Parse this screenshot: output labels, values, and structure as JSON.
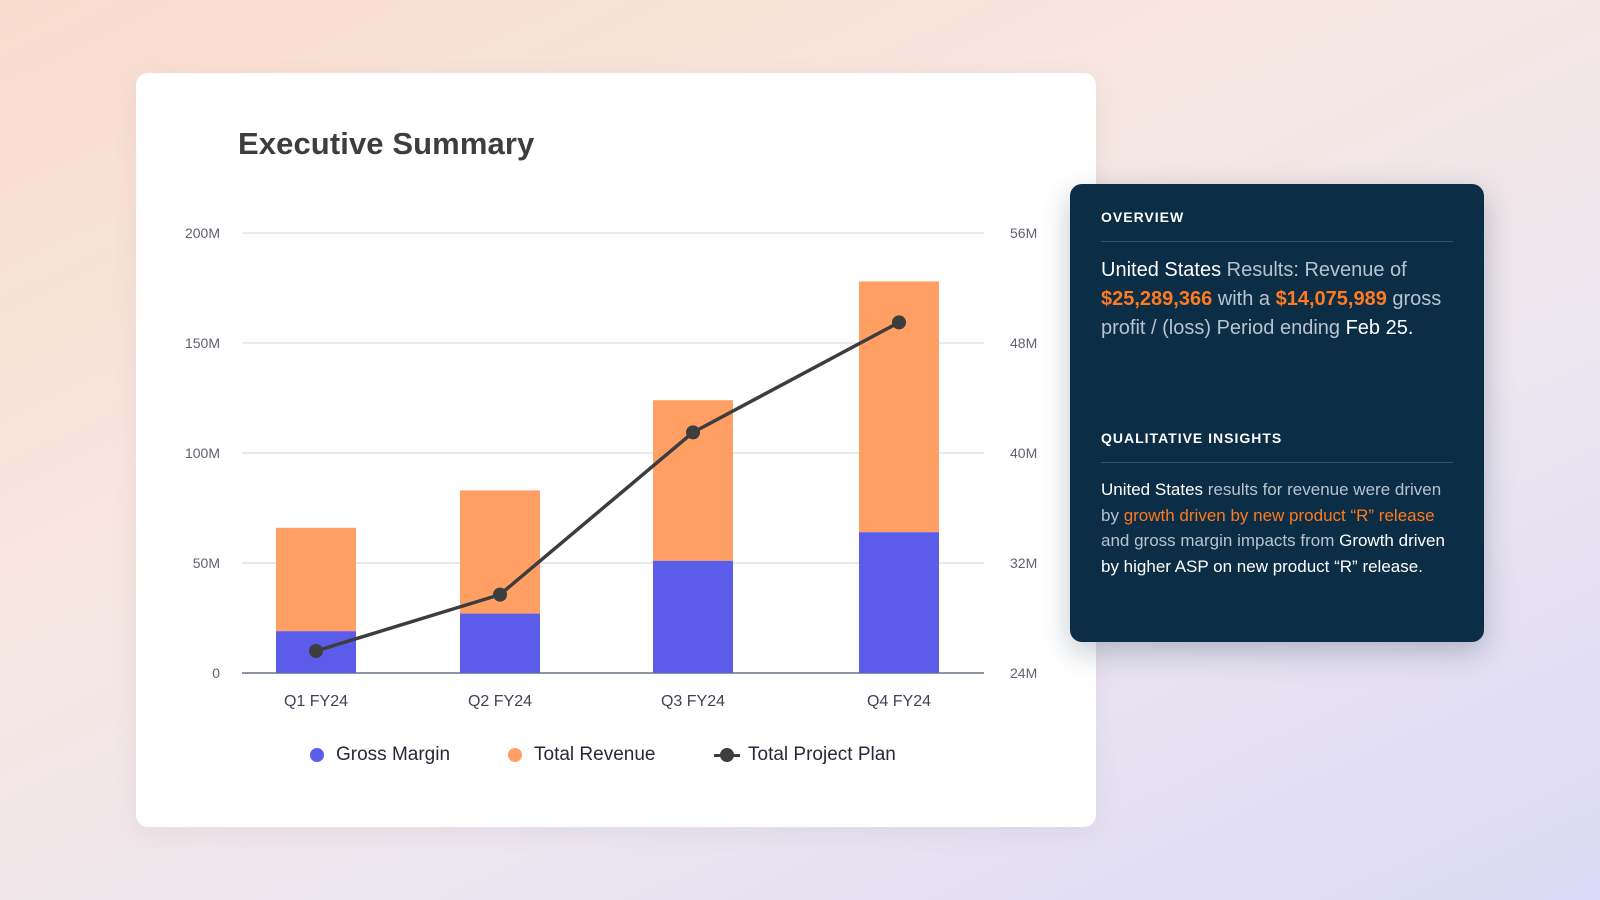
{
  "chart_data": {
    "type": "bar",
    "title": "Executive Summary",
    "categories": [
      "Q1 FY24",
      "Q2 FY24",
      "Q3 FY24",
      "Q4 FY24"
    ],
    "stacked": true,
    "series": [
      {
        "name": "Gross Margin",
        "kind": "bar",
        "axis": "left",
        "color": "#5c5cea",
        "values": [
          19,
          27,
          51,
          64
        ]
      },
      {
        "name": "Total Revenue",
        "kind": "bar",
        "axis": "left",
        "color": "#ff9f63",
        "values": [
          47,
          56,
          73,
          114
        ]
      },
      {
        "name": "Total Project Plan",
        "kind": "line",
        "axis": "right",
        "color": "#3d3d3d",
        "values": [
          25.6,
          29.7,
          41.5,
          49.5
        ]
      }
    ],
    "y_left": {
      "min": 0,
      "max": 200,
      "ticks": [
        0,
        50,
        100,
        150,
        200
      ],
      "tick_labels": [
        "0",
        "50M",
        "100M",
        "150M",
        "200M"
      ]
    },
    "y_right": {
      "min": 24,
      "max": 56,
      "ticks": [
        24,
        32,
        40,
        48,
        56
      ],
      "tick_labels": [
        "24M",
        "32M",
        "40M",
        "48M",
        "56M"
      ]
    },
    "grid": true,
    "legend_position": "bottom"
  },
  "panel": {
    "overview": {
      "heading": "OVERVIEW",
      "country": "United States",
      "text1": " Results: Revenue of ",
      "revenue": "$25,289,366",
      "text2": " with a ",
      "profit": "$14,075,989",
      "text3": " gross profit / (loss) Period ending ",
      "period": "Feb 25."
    },
    "insights": {
      "heading": "QUALITATIVE INSIGHTS",
      "country": "United States",
      "text1": " results for revenue were driven by ",
      "driver": "growth driven by new product “R” release",
      "text2": " and gross margin impacts from ",
      "impact": "Growth driven by higher ASP on new product “R” release."
    }
  }
}
